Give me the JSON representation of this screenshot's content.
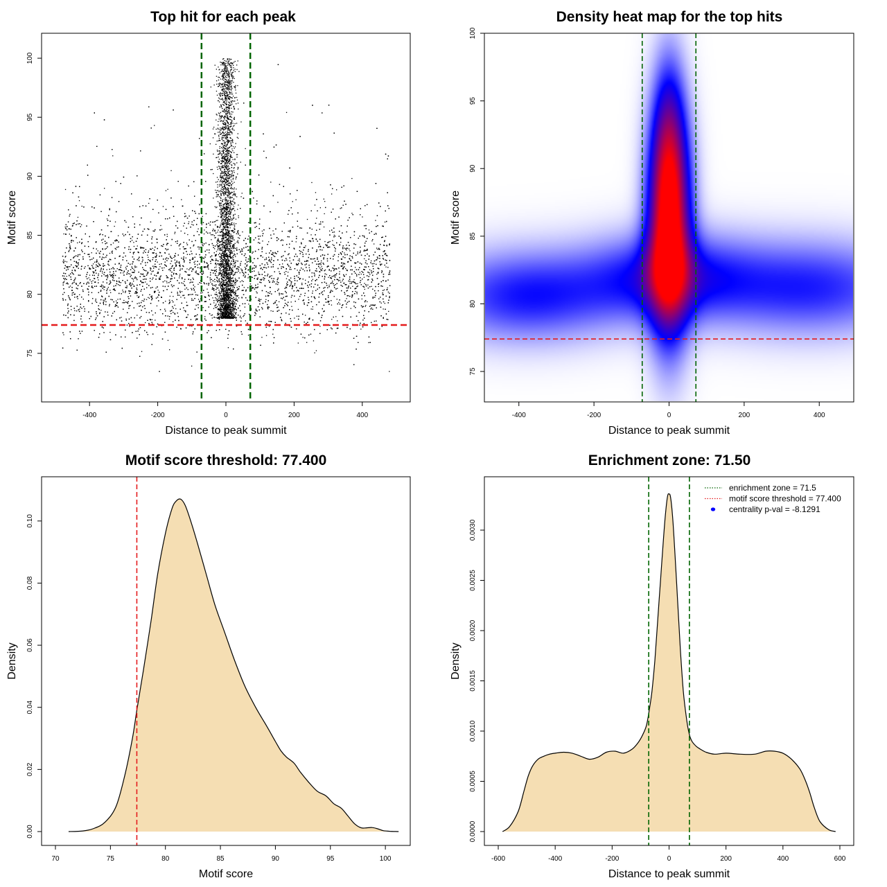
{
  "chart_data": [
    {
      "id": "scatter",
      "type": "scatter",
      "title": "Top hit for each peak",
      "xlabel": "Distance to peak summit",
      "ylabel": "Motif score",
      "xlim": [
        -500,
        500
      ],
      "ylim": [
        72,
        101
      ],
      "xticks": [
        -400,
        -200,
        0,
        200,
        400
      ],
      "yticks": [
        75,
        80,
        85,
        90,
        95,
        100
      ],
      "xtick_labels": [
        "-400",
        "-200",
        "0",
        "200",
        "400"
      ],
      "ytick_labels": [
        "75",
        "80",
        "85",
        "90",
        "95",
        "100"
      ],
      "vlines": [
        -71.5,
        71.5
      ],
      "hline": 77.4,
      "point_summary": {
        "background": {
          "x_range": [
            -480,
            480
          ],
          "score_mode": 81.5,
          "score_range": [
            73.5,
            99.5
          ]
        },
        "central_cluster": {
          "x_center": 0,
          "x_spread": 15,
          "score_range": [
            78,
            100
          ]
        }
      },
      "colors": {
        "points": "#000000",
        "vlines": "#006400",
        "hline": "#e41a1c"
      }
    },
    {
      "id": "heatmap",
      "type": "heatmap",
      "title": "Density heat map for the top hits",
      "xlabel": "Distance to peak summit",
      "ylabel": "Motif score",
      "xlim": [
        -490,
        490
      ],
      "ylim": [
        72.8,
        100
      ],
      "xticks": [
        -400,
        -200,
        0,
        200,
        400
      ],
      "yticks": [
        75,
        80,
        85,
        90,
        95,
        100
      ],
      "xtick_labels": [
        "-400",
        "-200",
        "0",
        "200",
        "400"
      ],
      "ytick_labels": [
        "75",
        "80",
        "85",
        "90",
        "95",
        "100"
      ],
      "vlines": [
        -71.5,
        71.5
      ],
      "hline": 77.4,
      "density_components": [
        {
          "x": 0,
          "y": 86,
          "sx": 38,
          "sy": 5.5,
          "w": 1.0
        },
        {
          "x": 0,
          "y": 82,
          "sx": 150,
          "sy": 2.2,
          "w": 0.35
        },
        {
          "x": -380,
          "y": 80.6,
          "sx": 170,
          "sy": 2.3,
          "w": 0.32
        },
        {
          "x": 380,
          "y": 81.2,
          "sx": 190,
          "sy": 2.4,
          "w": 0.3
        },
        {
          "x": 0,
          "y": 93,
          "sx": 30,
          "sy": 4,
          "w": 0.25
        }
      ],
      "colors": {
        "low": "#ffffff",
        "mid": "#0000ff",
        "high": "#ff0000",
        "vlines": "#006400",
        "hline": "#e41a1c"
      }
    },
    {
      "id": "density-score",
      "type": "area",
      "title": "Motif score threshold: 77.400",
      "xlabel": "Motif score",
      "ylabel": "Density",
      "xlim": [
        70,
        101
      ],
      "ylim": [
        0,
        0.11
      ],
      "xticks": [
        70,
        75,
        80,
        85,
        90,
        95,
        100
      ],
      "yticks": [
        0.0,
        0.02,
        0.04,
        0.06,
        0.08,
        0.1
      ],
      "xtick_labels": [
        "70",
        "75",
        "80",
        "85",
        "90",
        "95",
        "100"
      ],
      "ytick_labels": [
        "0.00",
        "0.02",
        "0.04",
        "0.06",
        "0.08",
        "0.10"
      ],
      "threshold": 77.4,
      "x": [
        71.2,
        72.5,
        73.5,
        74.5,
        75.5,
        76.3,
        77.0,
        77.4,
        78.0,
        78.7,
        79.3,
        80.0,
        80.6,
        81.0,
        81.4,
        81.8,
        82.3,
        82.9,
        83.7,
        84.5,
        85.4,
        86.3,
        87.2,
        88.2,
        89.2,
        90.0,
        90.5,
        91.0,
        91.7,
        92.3,
        93.0,
        93.8,
        94.6,
        95.3,
        96.0,
        96.6,
        97.2,
        97.8,
        98.3,
        98.8,
        99.3,
        99.8,
        100.4,
        101.2
      ],
      "y": [
        0.0,
        0.0002,
        0.001,
        0.003,
        0.008,
        0.018,
        0.03,
        0.039,
        0.052,
        0.068,
        0.083,
        0.096,
        0.104,
        0.1065,
        0.107,
        0.105,
        0.1,
        0.093,
        0.083,
        0.073,
        0.064,
        0.055,
        0.047,
        0.04,
        0.034,
        0.029,
        0.026,
        0.024,
        0.022,
        0.019,
        0.016,
        0.013,
        0.0115,
        0.009,
        0.0075,
        0.005,
        0.0025,
        0.0012,
        0.0012,
        0.0013,
        0.0009,
        0.0003,
        0.0001,
        0.0
      ],
      "colors": {
        "fill": "#f5deb3",
        "line": "#000000",
        "threshold": "#e41a1c"
      }
    },
    {
      "id": "density-distance",
      "type": "area",
      "title": "Enrichment zone: 71.50",
      "xlabel": "Distance to peak summit",
      "ylabel": "Density",
      "xlim": [
        -600,
        600
      ],
      "ylim": [
        0,
        0.0034
      ],
      "xticks": [
        -600,
        -400,
        -200,
        0,
        200,
        400,
        600
      ],
      "yticks": [
        0.0,
        0.0005,
        0.001,
        0.0015,
        0.002,
        0.0025,
        0.003
      ],
      "xtick_labels": [
        "-600",
        "-400",
        "-200",
        "0",
        "200",
        "400",
        "600"
      ],
      "ytick_labels": [
        "0.0000",
        "0.0005",
        "0.0010",
        "0.0015",
        "0.0020",
        "0.0025",
        "0.0030"
      ],
      "vlines": [
        -71.5,
        71.5
      ],
      "x": [
        -585,
        -560,
        -530,
        -510,
        -495,
        -480,
        -460,
        -440,
        -420,
        -400,
        -370,
        -340,
        -310,
        -280,
        -250,
        -220,
        -190,
        -160,
        -130,
        -110,
        -95,
        -80,
        -70,
        -60,
        -50,
        -40,
        -30,
        -20,
        -12,
        -5,
        0,
        5,
        12,
        20,
        30,
        40,
        50,
        60,
        70,
        80,
        95,
        110,
        130,
        160,
        200,
        250,
        300,
        340,
        370,
        400,
        430,
        460,
        480,
        495,
        510,
        530,
        560,
        585
      ],
      "y": [
        0.0,
        5e-05,
        0.0002,
        0.0004,
        0.00055,
        0.00065,
        0.00072,
        0.00075,
        0.00077,
        0.00078,
        0.00079,
        0.00078,
        0.00075,
        0.00072,
        0.00074,
        0.00079,
        0.0008,
        0.00078,
        0.00082,
        0.00088,
        0.00095,
        0.00105,
        0.0012,
        0.0014,
        0.0017,
        0.0021,
        0.0025,
        0.0029,
        0.00318,
        0.00334,
        0.00336,
        0.00333,
        0.00315,
        0.0028,
        0.0023,
        0.0018,
        0.0014,
        0.00115,
        0.00098,
        0.0009,
        0.00085,
        0.00082,
        0.00079,
        0.00077,
        0.00078,
        0.00077,
        0.00077,
        0.0008,
        0.0008,
        0.00078,
        0.00072,
        0.00062,
        0.0005,
        0.00038,
        0.00024,
        0.0001,
        2e-05,
        0.0
      ],
      "legend": [
        {
          "label": "enrichment zone = 71.5",
          "style": "dotted",
          "color": "#006400"
        },
        {
          "label": "motif score threshold = 77.400",
          "style": "dotted",
          "color": "#e41a1c"
        },
        {
          "label": "centrality p-val = -8.1291",
          "style": "dot",
          "color": "#0000ff"
        }
      ],
      "legend_position": "top-right",
      "colors": {
        "fill": "#f5deb3",
        "line": "#000000",
        "vlines": "#006400"
      }
    }
  ]
}
